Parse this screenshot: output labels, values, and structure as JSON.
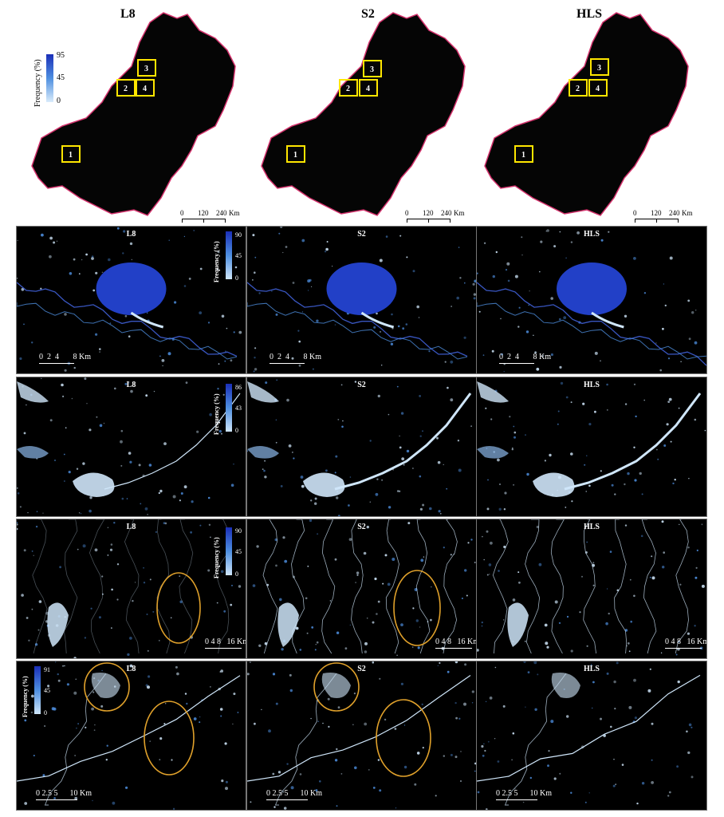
{
  "overview": {
    "titles": [
      "L8",
      "S2",
      "HLS"
    ],
    "legend": {
      "label": "Frequency (%)",
      "max": "95",
      "mid": "45",
      "min": "0"
    },
    "box_labels": [
      "1",
      "2",
      "3",
      "4"
    ],
    "scalebar": {
      "t0": "0",
      "t1": "120",
      "t2": "240",
      "unit": "Km"
    }
  },
  "rows": [
    {
      "titles": [
        "L8",
        "S2",
        "HLS"
      ],
      "legend": {
        "label": "Frequency (%)",
        "max": "90",
        "mid": "45",
        "min": "0"
      },
      "scalebar": "0  2  4       8 Km"
    },
    {
      "titles": [
        "L8",
        "S2",
        "HLS"
      ],
      "legend": {
        "label": "Frequency (%)",
        "max": "86",
        "mid": "43",
        "min": "0"
      },
      "scalebar": ""
    },
    {
      "titles": [
        "L8",
        "S2",
        "HLS"
      ],
      "legend": {
        "label": "Frequency (%)",
        "max": "90",
        "mid": "45",
        "min": "0"
      },
      "scalebar": "0 4 8   16 Km"
    },
    {
      "titles": [
        "L8",
        "S2",
        "HLS"
      ],
      "legend": {
        "label": "Frequency (%)",
        "max": "91",
        "mid": "45",
        "min": "0"
      },
      "scalebar": "0 2.5 5      10 Km"
    }
  ],
  "colors": {
    "background": "#000000",
    "boundary": "#d4336d",
    "box": "#ffe600",
    "circle": "#e0a12b",
    "water_high": "#1a2fb8",
    "water_low": "#cfe6fa"
  }
}
